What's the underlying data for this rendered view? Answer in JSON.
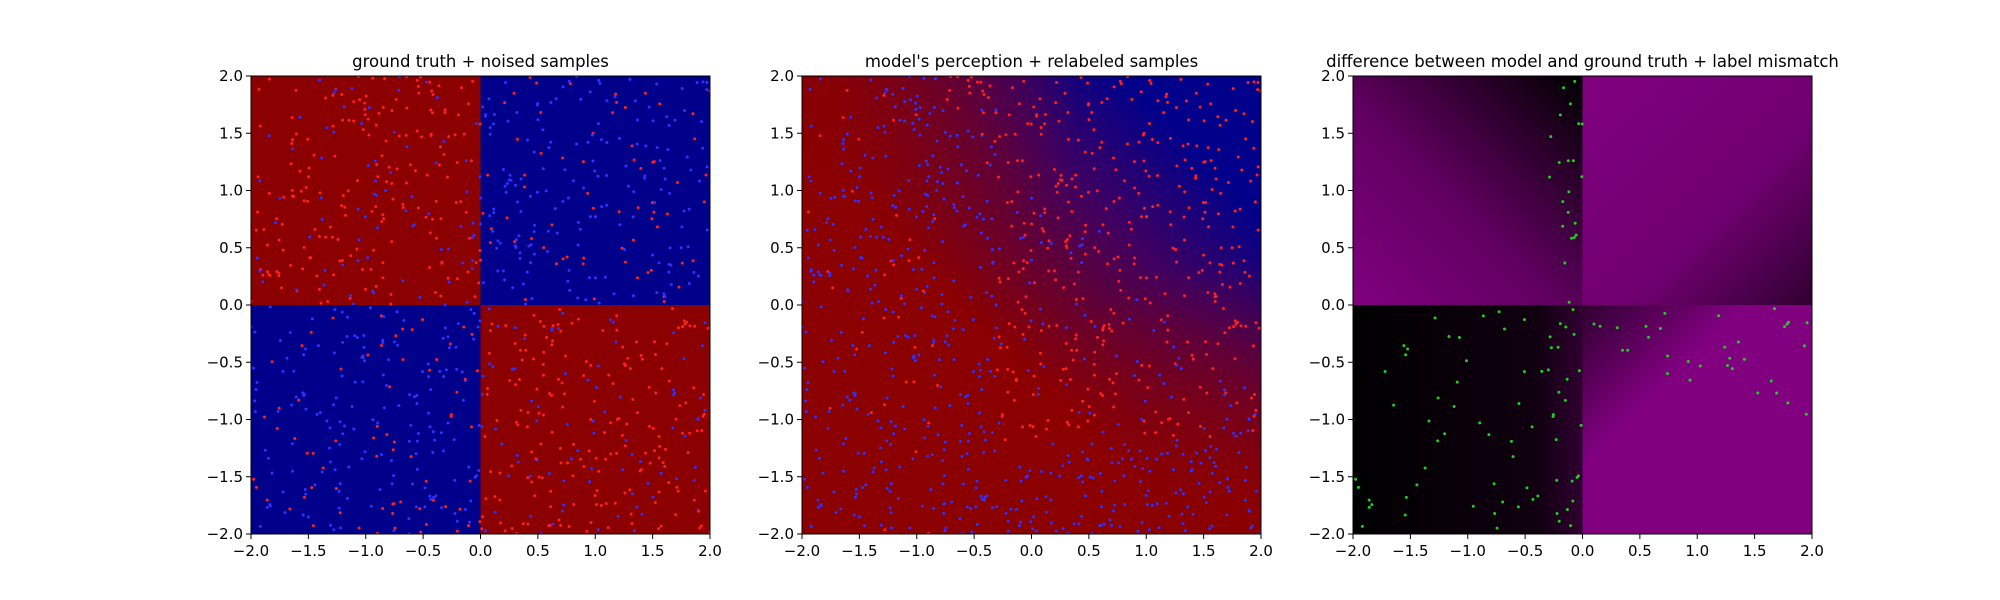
{
  "chart_data": [
    {
      "type": "heatmap",
      "title": "ground truth + noised samples",
      "xlim": [
        -2.0,
        2.0
      ],
      "ylim": [
        -2.0,
        2.0
      ],
      "xticks": [
        "−2.0",
        "−1.5",
        "−1.0",
        "−0.5",
        "0.0",
        "0.5",
        "1.0",
        "1.5",
        "2.0"
      ],
      "yticks": [
        "−2.0",
        "−1.5",
        "−1.0",
        "−0.5",
        "0.0",
        "0.5",
        "1.0",
        "1.5",
        "2.0"
      ],
      "background": "quadrants",
      "regions": [
        {
          "quadrant": "top-left",
          "color": "#8b0000"
        },
        {
          "quadrant": "top-right",
          "color": "#00008b"
        },
        {
          "quadrant": "bottom-left",
          "color": "#00008b"
        },
        {
          "quadrant": "bottom-right",
          "color": "#8b0000"
        }
      ],
      "scatter": {
        "colors": [
          "#ff2020",
          "#3030ff"
        ],
        "approx_count": 1000
      }
    },
    {
      "type": "heatmap",
      "title": "model's perception + relabeled samples",
      "xlim": [
        -2.0,
        2.0
      ],
      "ylim": [
        -2.0,
        2.0
      ],
      "xticks": [
        "−2.0",
        "−1.5",
        "−1.0",
        "−0.5",
        "0.0",
        "0.5",
        "1.0",
        "1.5",
        "2.0"
      ],
      "yticks": [
        "−2.0",
        "−1.5",
        "−1.0",
        "−0.5",
        "0.0",
        "0.5",
        "1.0",
        "1.5",
        "2.0"
      ],
      "background": "smooth blend from dark red (left/bottom) to dark blue (top-right)",
      "scatter": {
        "colors": [
          "#ff2020",
          "#3030ff"
        ],
        "approx_count": 1000
      }
    },
    {
      "type": "heatmap",
      "title": "difference between model and ground truth + label mismatch",
      "xlim": [
        -2.0,
        2.0
      ],
      "ylim": [
        -2.0,
        2.0
      ],
      "xticks": [
        "−2.0",
        "−1.5",
        "−1.0",
        "−0.5",
        "0.0",
        "0.5",
        "1.0",
        "1.5",
        "2.0"
      ],
      "yticks": [
        "−2.0",
        "−1.5",
        "−1.0",
        "−0.5",
        "0.0",
        "0.5",
        "1.0",
        "1.5",
        "2.0"
      ],
      "background": "purple for large difference, black for small difference",
      "colors": {
        "high": "#800080",
        "low": "#000000"
      },
      "scatter": {
        "colors": [
          "#22cc22"
        ],
        "approx_count": 250
      }
    }
  ]
}
